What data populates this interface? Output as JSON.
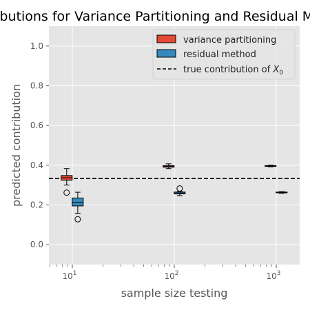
{
  "chart_data": {
    "type": "box",
    "title": "Contributions for Variance Partitioning and Residual Method",
    "xlabel": "sample size testing",
    "ylabel": "predicted contribution",
    "xscale": "log",
    "ylim": [
      -0.1,
      1.1
    ],
    "yticks": [
      0.0,
      0.2,
      0.4,
      0.6,
      0.8,
      1.0
    ],
    "ytick_labels": [
      "0.0",
      "0.2",
      "0.4",
      "0.6",
      "0.8",
      "1.0"
    ],
    "xticks": [
      10,
      100,
      1000
    ],
    "xtick_labels": [
      {
        "base": "10",
        "exp": "1"
      },
      {
        "base": "10",
        "exp": "2"
      },
      {
        "base": "10",
        "exp": "3"
      }
    ],
    "grid": true,
    "legend_position": "top-right",
    "reference_line": {
      "label_text": "true contribution of ",
      "label_symbol": "X",
      "label_sub": "0",
      "value": 0.333
    },
    "series": [
      {
        "name": "variance partitioning",
        "color": "#E24A33",
        "boxes": [
          {
            "x": 8.8,
            "whislo": 0.3,
            "q1": 0.325,
            "med": 0.337,
            "q3": 0.348,
            "whishi": 0.383,
            "fliers": [
              0.262
            ]
          },
          {
            "x": 88,
            "whislo": 0.383,
            "q1": 0.39,
            "med": 0.394,
            "q3": 0.398,
            "whishi": 0.407,
            "fliers": []
          },
          {
            "x": 880,
            "whislo": 0.392,
            "q1": 0.394,
            "med": 0.396,
            "q3": 0.398,
            "whishi": 0.4,
            "fliers": []
          }
        ]
      },
      {
        "name": "residual method",
        "color": "#348ABD",
        "boxes": [
          {
            "x": 11.3,
            "whislo": 0.158,
            "q1": 0.195,
            "med": 0.213,
            "q3": 0.235,
            "whishi": 0.264,
            "fliers": [
              0.128
            ]
          },
          {
            "x": 113,
            "whislo": 0.247,
            "q1": 0.256,
            "med": 0.26,
            "q3": 0.265,
            "whishi": 0.268,
            "fliers": [
              0.283
            ]
          },
          {
            "x": 1130,
            "whislo": 0.259,
            "q1": 0.261,
            "med": 0.263,
            "q3": 0.265,
            "whishi": 0.267,
            "fliers": []
          }
        ]
      }
    ]
  }
}
